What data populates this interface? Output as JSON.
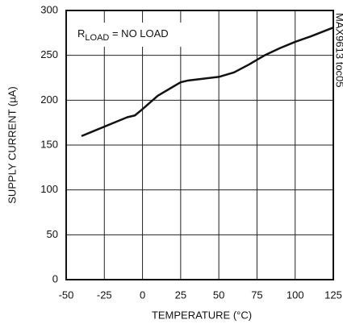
{
  "chart_data": {
    "type": "line",
    "xlabel": "TEMPERATURE (°C)",
    "ylabel": "SUPPLY CURRENT (µA)",
    "annotation": {
      "main": "R",
      "subscript": "LOAD",
      "rest": " = NO LOAD"
    },
    "side_label": "MAX9613 toc05",
    "x": [
      -40,
      -30,
      -20,
      -10,
      -5,
      0,
      10,
      20,
      25,
      30,
      40,
      50,
      60,
      70,
      75,
      80,
      90,
      100,
      110,
      125
    ],
    "series": [
      {
        "color": "#111111",
        "values": [
          160,
          167,
          174,
          181,
          183,
          190,
          205,
          215,
          220,
          222,
          224,
          226,
          231,
          240,
          245,
          250,
          258,
          265,
          271,
          281
        ]
      }
    ],
    "xlim": [
      -50,
      125
    ],
    "xticks": [
      -50,
      -25,
      0,
      25,
      50,
      75,
      100,
      125
    ],
    "ylim": [
      0,
      300
    ],
    "yticks": [
      0,
      50,
      100,
      150,
      200,
      250,
      300
    ],
    "grid": true
  }
}
